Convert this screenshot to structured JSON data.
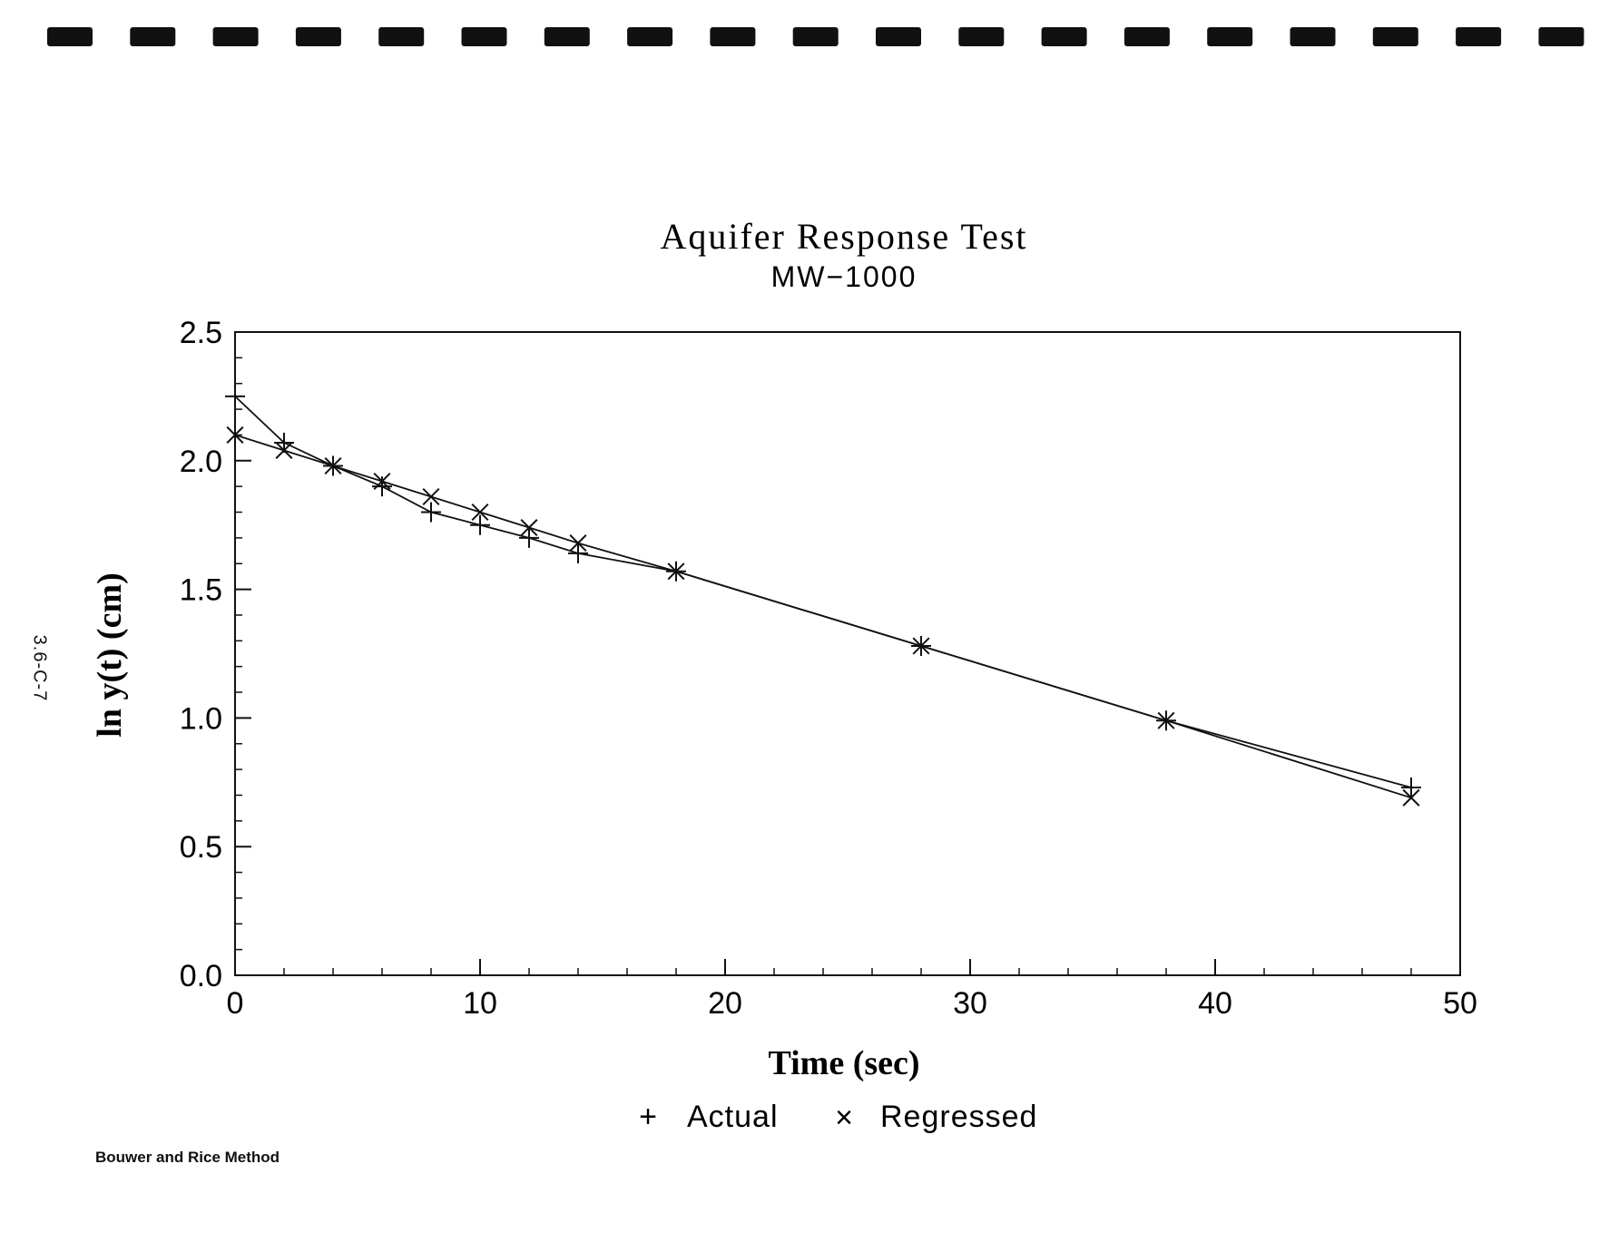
{
  "page": {
    "page_number": "3.6-C-7",
    "method_label": "Bouwer and Rice Method"
  },
  "chart_data": {
    "type": "line",
    "title": "Aquifer Response Test",
    "subtitle": "MW−1000",
    "xlabel": "Time (sec)",
    "ylabel": "ln y(t) (cm)",
    "xlim": [
      0,
      50
    ],
    "ylim": [
      0,
      2.5
    ],
    "x_ticks": [
      0,
      10,
      20,
      30,
      40,
      50
    ],
    "y_ticks": [
      0.0,
      0.5,
      1.0,
      1.5,
      2.0,
      2.5
    ],
    "x_tick_labels": [
      "0",
      "10",
      "20",
      "30",
      "40",
      "50"
    ],
    "y_tick_labels": [
      "0.0",
      "0.5",
      "1.0",
      "1.5",
      "2.0",
      "2.5"
    ],
    "x_minor_step": 2,
    "y_minor_step": 0.1,
    "grid": false,
    "legend_position": "bottom-center",
    "series": [
      {
        "name": "Actual",
        "marker": "+",
        "x": [
          0,
          2,
          4,
          6,
          8,
          10,
          12,
          14,
          18,
          28,
          38,
          48
        ],
        "y": [
          2.25,
          2.07,
          1.98,
          1.9,
          1.8,
          1.75,
          1.7,
          1.64,
          1.57,
          1.28,
          0.99,
          0.73
        ]
      },
      {
        "name": "Regressed",
        "marker": "x",
        "x": [
          0,
          2,
          4,
          6,
          8,
          10,
          12,
          14,
          18,
          28,
          38,
          48
        ],
        "y": [
          2.1,
          2.04,
          1.98,
          1.92,
          1.86,
          1.8,
          1.74,
          1.68,
          1.57,
          1.28,
          0.99,
          0.69
        ]
      }
    ]
  }
}
